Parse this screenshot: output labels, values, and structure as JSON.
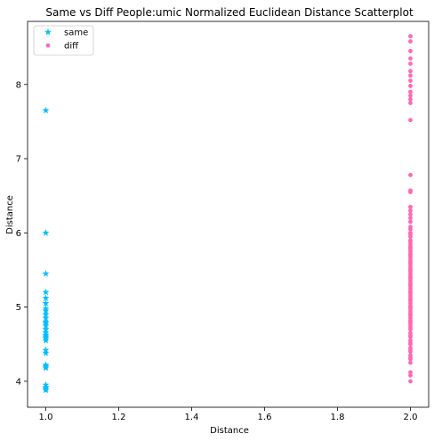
{
  "chart_data": {
    "type": "scatter",
    "title": "Same vs Diff People:umic Normalized Euclidean Distance Scatterplot",
    "xlabel": "Distance",
    "ylabel": "Distance",
    "xlim": [
      0.95,
      2.05
    ],
    "ylim": [
      3.65,
      8.85
    ],
    "xticks": [
      "1.0",
      "1.2",
      "1.4",
      "1.6",
      "1.8",
      "2.0"
    ],
    "yticks": [
      "4",
      "5",
      "6",
      "7",
      "8"
    ],
    "grid": false,
    "legend_position": "top-left",
    "series": [
      {
        "name": "same",
        "marker": "star",
        "color": "#00bfff",
        "x": [
          1,
          1,
          1,
          1,
          1,
          1,
          1,
          1,
          1,
          1,
          1,
          1,
          1,
          1,
          1,
          1,
          1,
          1,
          1,
          1,
          1,
          1,
          1,
          1,
          1,
          1,
          1,
          1
        ],
        "y": [
          7.65,
          6.0,
          5.45,
          5.2,
          5.12,
          5.05,
          4.98,
          4.95,
          4.9,
          4.85,
          4.8,
          4.78,
          4.75,
          4.7,
          4.65,
          4.62,
          4.6,
          4.58,
          4.55,
          4.42,
          4.38,
          4.22,
          4.2,
          4.18,
          3.95,
          3.92,
          3.9,
          3.88
        ]
      },
      {
        "name": "diff",
        "marker": "circle",
        "color": "#ff69b4",
        "x": [
          2,
          2,
          2,
          2,
          2,
          2,
          2,
          2,
          2,
          2,
          2,
          2,
          2,
          2,
          2,
          2,
          2,
          2,
          2,
          2,
          2,
          2,
          2,
          2,
          2,
          2,
          2,
          2,
          2,
          2,
          2,
          2,
          2,
          2,
          2,
          2,
          2,
          2,
          2,
          2,
          2,
          2,
          2,
          2,
          2,
          2,
          2,
          2,
          2,
          2,
          2,
          2,
          2,
          2,
          2,
          2,
          2,
          2,
          2,
          2,
          2,
          2,
          2,
          2,
          2,
          2,
          2,
          2,
          2,
          2,
          2,
          2,
          2,
          2,
          2,
          2,
          2,
          2,
          2,
          2,
          2,
          2,
          2,
          2,
          2,
          2,
          2,
          2,
          2,
          2,
          2,
          2
        ],
        "y": [
          8.65,
          8.58,
          8.45,
          8.35,
          8.28,
          8.18,
          8.12,
          8.05,
          7.98,
          7.9,
          7.85,
          7.8,
          7.75,
          7.52,
          6.78,
          6.57,
          6.55,
          6.35,
          6.3,
          6.25,
          6.2,
          6.15,
          6.08,
          6.05,
          6.0,
          5.95,
          5.9,
          5.85,
          5.8,
          5.75,
          5.7,
          5.65,
          5.6,
          5.55,
          5.5,
          5.45,
          5.4,
          5.35,
          5.3,
          5.25,
          5.2,
          5.15,
          5.1,
          5.05,
          5.0,
          4.95,
          4.9,
          4.85,
          4.8,
          4.75,
          4.7,
          4.65,
          4.6,
          4.55,
          4.5,
          4.45,
          4.4,
          4.35,
          4.3,
          4.25,
          4.12,
          4.08,
          4.0,
          5.82,
          5.72,
          5.62,
          5.52,
          5.42,
          5.32,
          5.22,
          5.12,
          5.02,
          4.92,
          4.82,
          4.72,
          4.62,
          4.52,
          4.42,
          4.32,
          5.98,
          5.88,
          5.78,
          5.68,
          5.58,
          5.48,
          5.38,
          5.28,
          5.18,
          5.08,
          4.98,
          4.88,
          4.78
        ]
      }
    ]
  }
}
